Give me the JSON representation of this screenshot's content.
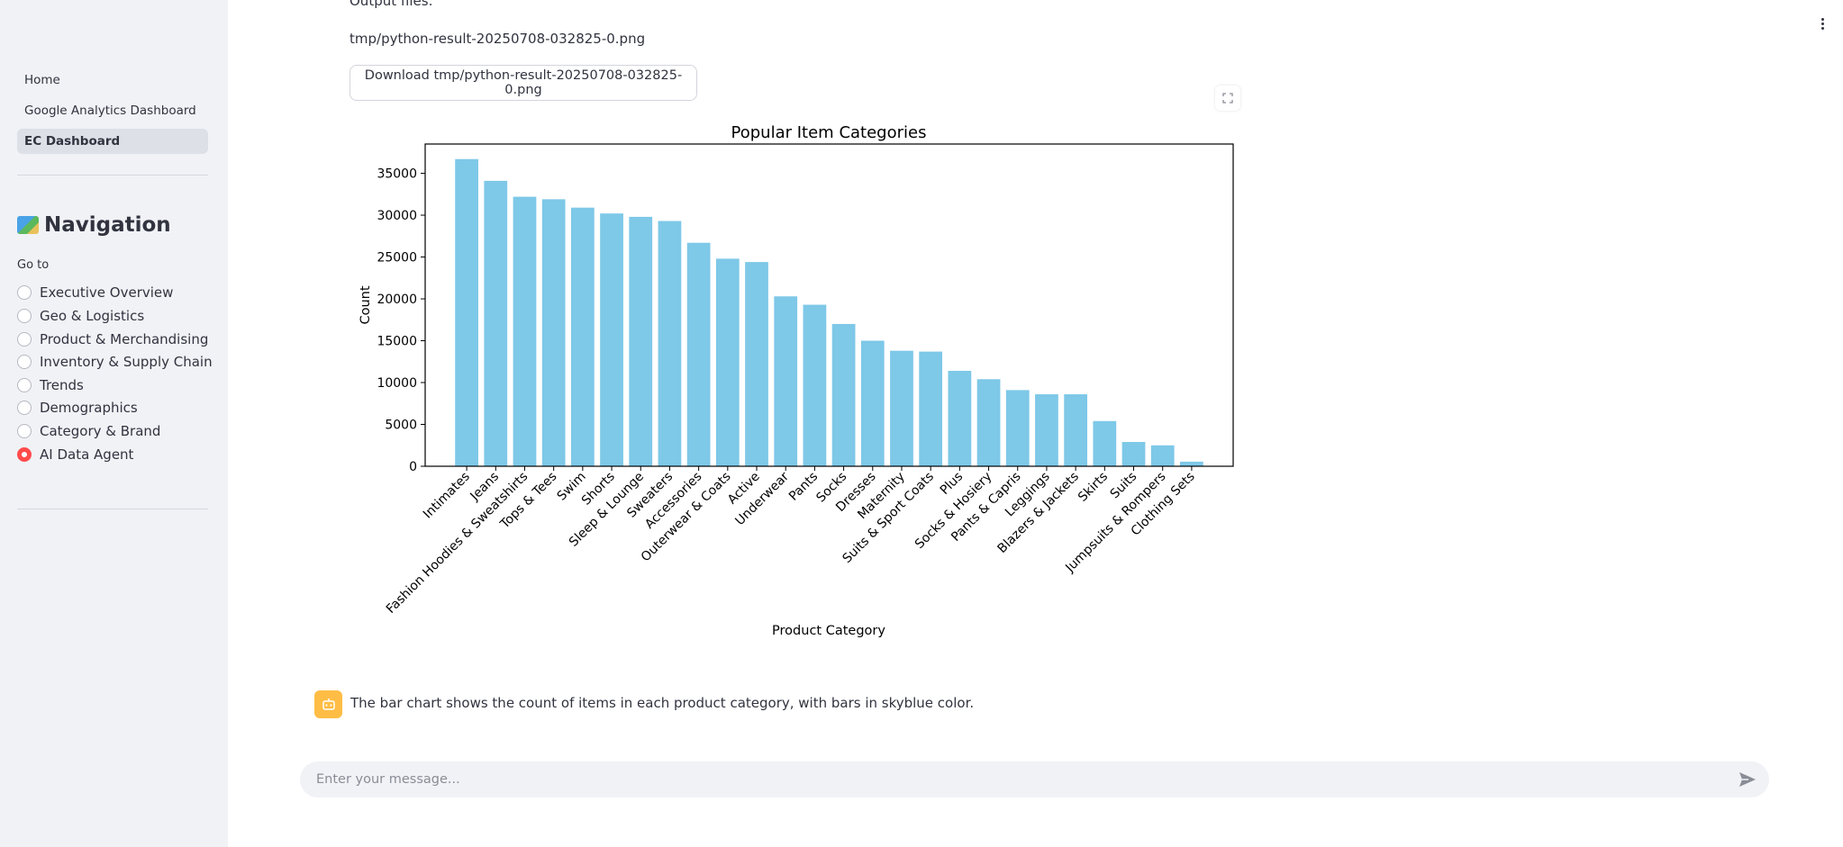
{
  "sidebar": {
    "pages": [
      {
        "label": "Home",
        "active": false
      },
      {
        "label": "Google Analytics Dashboard",
        "active": false
      },
      {
        "label": "EC Dashboard",
        "active": true
      }
    ],
    "nav_title": "Navigation",
    "goto_label": "Go to",
    "options": [
      {
        "label": "Executive Overview",
        "checked": false
      },
      {
        "label": "Geo & Logistics",
        "checked": false
      },
      {
        "label": "Product & Merchandising",
        "checked": false
      },
      {
        "label": "Inventory & Supply Chain",
        "checked": false
      },
      {
        "label": "Trends",
        "checked": false
      },
      {
        "label": "Demographics",
        "checked": false
      },
      {
        "label": "Category & Brand",
        "checked": false
      },
      {
        "label": "AI Data Agent",
        "checked": true
      }
    ]
  },
  "main": {
    "output_files_label": "Output files:",
    "file_path": "tmp/python-result-20250708-032825-0.png",
    "download_label": "Download tmp/python-result-20250708-032825-0.png",
    "assistant_message": "The bar chart shows the count of items in each product category, with bars in skyblue color."
  },
  "chat": {
    "placeholder": "Enter your message..."
  },
  "colors": {
    "bar": "#7ec8e8",
    "accent": "#ff4b4b",
    "avatar": "#ffbd45"
  },
  "chart_data": {
    "type": "bar",
    "title": "Popular Item Categories",
    "xlabel": "Product Category",
    "ylabel": "Count",
    "ylim": [
      0,
      38500
    ],
    "yticks": [
      0,
      5000,
      10000,
      15000,
      20000,
      25000,
      30000,
      35000
    ],
    "categories": [
      "Intimates",
      "Jeans",
      "Fashion Hoodies & Sweatshirts",
      "Tops & Tees",
      "Swim",
      "Shorts",
      "Sleep & Lounge",
      "Sweaters",
      "Accessories",
      "Outerwear & Coats",
      "Active",
      "Underwear",
      "Pants",
      "Socks",
      "Dresses",
      "Maternity",
      "Suits & Sport Coats",
      "Plus",
      "Socks & Hosiery",
      "Pants & Capris",
      "Leggings",
      "Blazers & Jackets",
      "Skirts",
      "Suits",
      "Jumpsuits & Rompers",
      "Clothing Sets"
    ],
    "values": [
      36700,
      34100,
      32200,
      31900,
      30900,
      30200,
      29800,
      29300,
      26700,
      24800,
      24400,
      20300,
      19300,
      17000,
      15000,
      13800,
      13700,
      11400,
      10400,
      9100,
      8600,
      8600,
      5400,
      2900,
      2500,
      550
    ],
    "grid": false
  }
}
